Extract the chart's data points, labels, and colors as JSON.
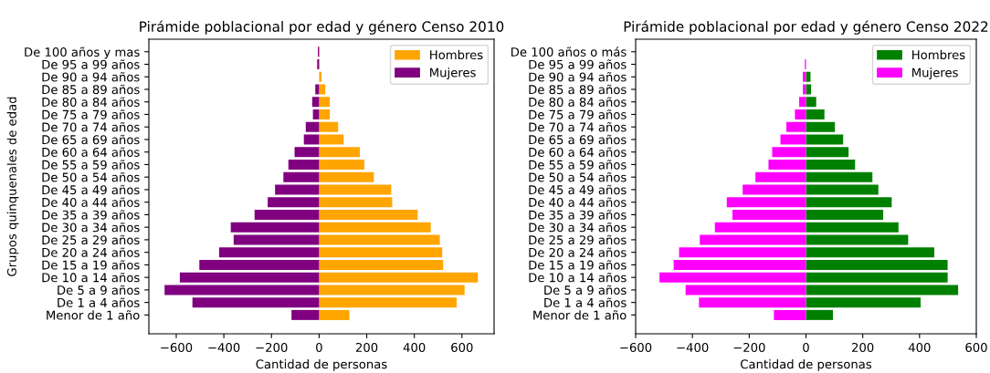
{
  "chart_data": [
    {
      "type": "bar",
      "orientation": "horizontal",
      "stacked": true,
      "title": "Pirámide poblacional por edad y género Censo 2010",
      "xlabel": "Cantidad de personas",
      "ylabel": "Grupos quinquenales de edad",
      "legend": "top right",
      "categories": [
        "De 100 años y mas",
        "De 95 a 99 años",
        "De 90 a 94 años",
        "De 85 a 89 años",
        "De 80 a 84 años",
        "De 75 a 79 años",
        "De 70 a 74 años",
        "De 65 a 69 años",
        "De 60 a 64 años",
        "De 55 a 59 años",
        "De 50 a 54 años",
        "De 45 a 49 años",
        "De 40 a 44 años",
        "De 35 a 39 años",
        "De 30 a 34 años",
        "De 25 a 29 años",
        "De 20 a 24 años",
        "De 15 a 19 años",
        "De 10 a 14 años",
        "De 5 a 9 años",
        "De 1 a 4 años",
        "Menor de 1 año"
      ],
      "xlim": [
        -715,
        735
      ],
      "xticks": [
        {
          "value": -600,
          "label": "−600"
        },
        {
          "value": -400,
          "label": "−400"
        },
        {
          "value": -200,
          "label": "−200"
        },
        0,
        200,
        400,
        600
      ],
      "series": [
        {
          "name": "Hombres",
          "color": "#ffa500",
          "values": [
            2,
            2,
            10,
            26,
            45,
            45,
            80,
            103,
            171,
            190,
            230,
            303,
            307,
            414,
            469,
            507,
            517,
            521,
            667,
            611,
            578,
            127
          ]
        },
        {
          "name": "Mujeres",
          "color": "#800080",
          "values": [
            -5,
            -8,
            null,
            -16,
            -29,
            -26,
            -56,
            -64,
            -103,
            -129,
            -150,
            -185,
            -216,
            -271,
            -371,
            -359,
            -420,
            -503,
            -585,
            -649,
            -532,
            -116
          ]
        }
      ]
    },
    {
      "type": "bar",
      "orientation": "horizontal",
      "stacked": true,
      "title": "Pirámide poblacional por edad y género Censo 2022",
      "xlabel": "Cantidad de personas",
      "legend": "top right",
      "categories": [
        "De 100 años o más",
        "De 95 a 99 años",
        "De 90 a 94 años",
        "De 85 a 89 años",
        "De 80 a 84 años",
        "De 75 a 79 años",
        "De 70 a 74 años",
        "De 65 a 69 años",
        "De 60 a 64 años",
        "De 55 a 59 años",
        "De 50 a 54 años",
        "De 45 a 49 años",
        "De 40 a 44 años",
        "De 35 a 39 años",
        "De 30 a 34 años",
        "De 25 a 29 años",
        "De 20 a 24 años",
        "De 15 a 19 años",
        "De 10 a 14 años",
        "De 5 a 9 años",
        "De 1 a 4 años",
        "Menor de 1 año"
      ],
      "xlim": [
        -600,
        600
      ],
      "xticks": [
        {
          "value": -600,
          "label": "−600"
        },
        {
          "value": -400,
          "label": "−400"
        },
        {
          "value": -200,
          "label": "−200"
        },
        0,
        200,
        400,
        600
      ],
      "series": [
        {
          "name": "Hombres",
          "color": "#008000",
          "values": [
            0,
            null,
            16,
            18,
            36,
            65,
            102,
            131,
            150,
            173,
            234,
            255,
            302,
            272,
            326,
            360,
            452,
            499,
            499,
            536,
            404,
            95
          ]
        },
        {
          "name": "Mujeres",
          "color": "#ff00ff",
          "values": [
            0,
            -4,
            -11,
            -11,
            -24,
            -39,
            -69,
            -90,
            -119,
            -132,
            -178,
            -223,
            -279,
            -259,
            -321,
            -374,
            -447,
            -466,
            -516,
            -424,
            -377,
            -113
          ]
        }
      ]
    }
  ]
}
